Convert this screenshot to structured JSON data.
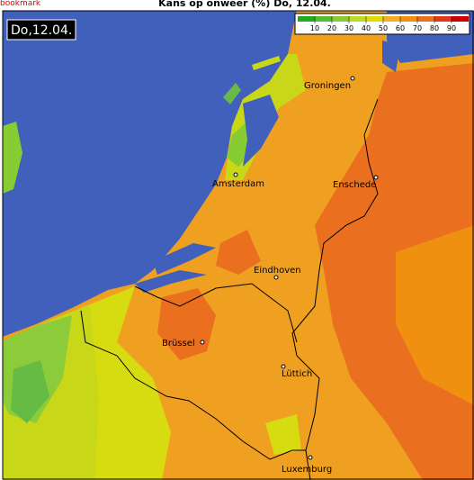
{
  "header": {
    "bookmark": "bookmark",
    "title": "Kans op onweer (%) Do, 12.04."
  },
  "map": {
    "date_label": "Do,12.04.",
    "legend": {
      "ticks": [
        10,
        20,
        30,
        40,
        50,
        60,
        70,
        80,
        90
      ],
      "colors": [
        "#22aa22",
        "#55bb33",
        "#88cc33",
        "#bbdd22",
        "#dddd00",
        "#f0b020",
        "#f09010",
        "#ea7020",
        "#e03818",
        "#cc0000"
      ]
    },
    "cities": [
      "Groningen",
      "Amsterdam",
      "Enschede",
      "Eindhoven",
      "Brüssel",
      "Lüttich",
      "Luxemburg"
    ]
  }
}
